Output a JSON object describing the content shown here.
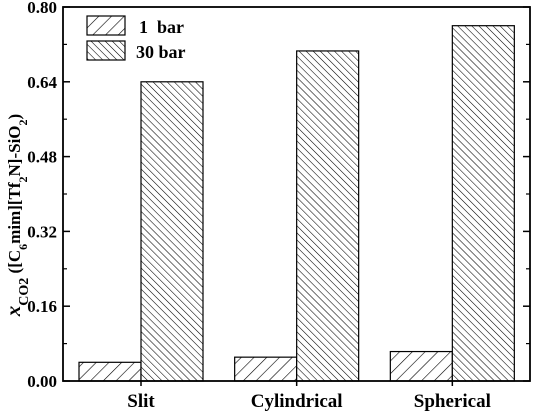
{
  "chart_data": {
    "type": "bar",
    "categories": [
      "Slit",
      "Cylindrical",
      "Spherical"
    ],
    "series": [
      {
        "name": "1  bar",
        "values": [
          0.04,
          0.051,
          0.063
        ],
        "pattern": "hatch-wide"
      },
      {
        "name": "30 bar",
        "values": [
          0.64,
          0.706,
          0.76
        ],
        "pattern": "hatch-dense"
      }
    ],
    "ylim": [
      0,
      0.8
    ],
    "yticks": [
      "0.00",
      "0.16",
      "0.32",
      "0.48",
      "0.64",
      "0.80"
    ],
    "ylabel": {
      "main": "x",
      "sub1": "CO2",
      "text1": "  ([C",
      "sub2": "6",
      "text2": "mim][Tf",
      "sub3": "2",
      "text3": "N]-SiO",
      "sub4": "2",
      "text4": ")"
    },
    "legend_position": "top-left",
    "grid": false,
    "colors": {
      "bar_fill": "#ffffff",
      "hatch": "#000000",
      "axis": "#000000"
    }
  }
}
